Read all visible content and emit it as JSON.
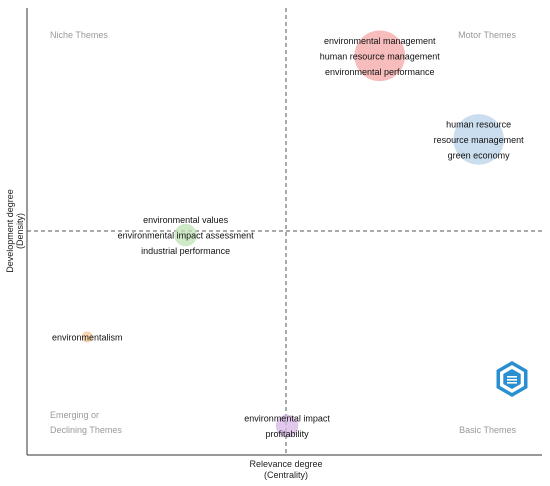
{
  "chart_data": {
    "type": "scatter",
    "title": "",
    "xlabel": [
      "Relevance degree",
      "(Centrality)"
    ],
    "ylabel": [
      "Development degree",
      "(Density)"
    ],
    "xlim": [
      0,
      1
    ],
    "ylim": [
      0,
      1
    ],
    "grid": false,
    "quadrants": {
      "top_left": [
        "Niche Themes"
      ],
      "top_right": [
        "Motor Themes"
      ],
      "bottom_left": [
        "Emerging or",
        "Declining Themes"
      ],
      "bottom_right": [
        "Basic Themes"
      ]
    },
    "clusters": [
      {
        "labels": [
          "environmental management",
          "human resource management",
          "environmental performance"
        ],
        "x": 0.685,
        "y": 0.893,
        "size": 0.82,
        "color": "#f4a6a6"
      },
      {
        "labels": [
          "human resource",
          "resource management",
          "green economy"
        ],
        "x": 0.877,
        "y": 0.706,
        "size": 0.82,
        "color": "#b9d3ea"
      },
      {
        "labels": [
          "environmental values",
          "environmental impact assessment",
          "industrial performance"
        ],
        "x": 0.308,
        "y": 0.492,
        "size": 0.28,
        "color": "#bfe3b4"
      },
      {
        "labels": [
          "environmentalism"
        ],
        "x": 0.117,
        "y": 0.264,
        "size": 0.06,
        "color": "#f6c99a"
      },
      {
        "labels": [
          "environmental impact",
          "profitability"
        ],
        "x": 0.505,
        "y": 0.065,
        "size": 0.28,
        "color": "#d7b6e6"
      }
    ]
  },
  "logo": {
    "name": "bibliometrix-logo",
    "color": "#2a8fd0"
  }
}
